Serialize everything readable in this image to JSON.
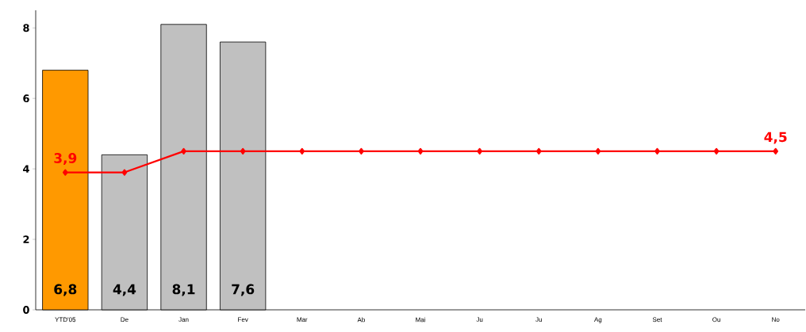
{
  "chart_data": {
    "type": "bar",
    "categories": [
      "YTD'05",
      "De",
      "Jan",
      "Fev",
      "Mar",
      "Ab",
      "Mai",
      "Ju",
      "Ju",
      "Ag",
      "Set",
      "Ou",
      "No"
    ],
    "ylim": [
      0,
      8.5
    ],
    "yticks": [
      0,
      2,
      4,
      6,
      8
    ],
    "marker": "diamond",
    "series": [
      {
        "colors": [
          "#ff9900",
          "#c0c0c0",
          "#c0c0c0",
          "#c0c0c0",
          "#c0c0c0",
          "#c0c0c0",
          "#c0c0c0",
          "#c0c0c0",
          "#c0c0c0",
          "#c0c0c0",
          "#c0c0c0",
          "#c0c0c0",
          "#c0c0c0"
        ],
        "values": [
          6.8,
          4.4,
          8.1,
          7.6,
          null,
          null,
          null,
          null,
          null,
          null,
          null,
          null,
          null
        ],
        "value_labels": [
          "6,8",
          "4,4",
          "8,1",
          "7,6",
          null,
          null,
          null,
          null,
          null,
          null,
          null,
          null,
          null
        ]
      },
      {
        "type": "line",
        "color": "#ff0000",
        "values": [
          3.9,
          3.9,
          4.5,
          4.5,
          4.5,
          4.5,
          4.5,
          4.5,
          4.5,
          4.5,
          4.5,
          4.5,
          4.5
        ],
        "value_labels": [
          "3,9",
          null,
          null,
          null,
          null,
          null,
          null,
          null,
          null,
          null,
          null,
          null,
          "4,5"
        ]
      }
    ]
  }
}
